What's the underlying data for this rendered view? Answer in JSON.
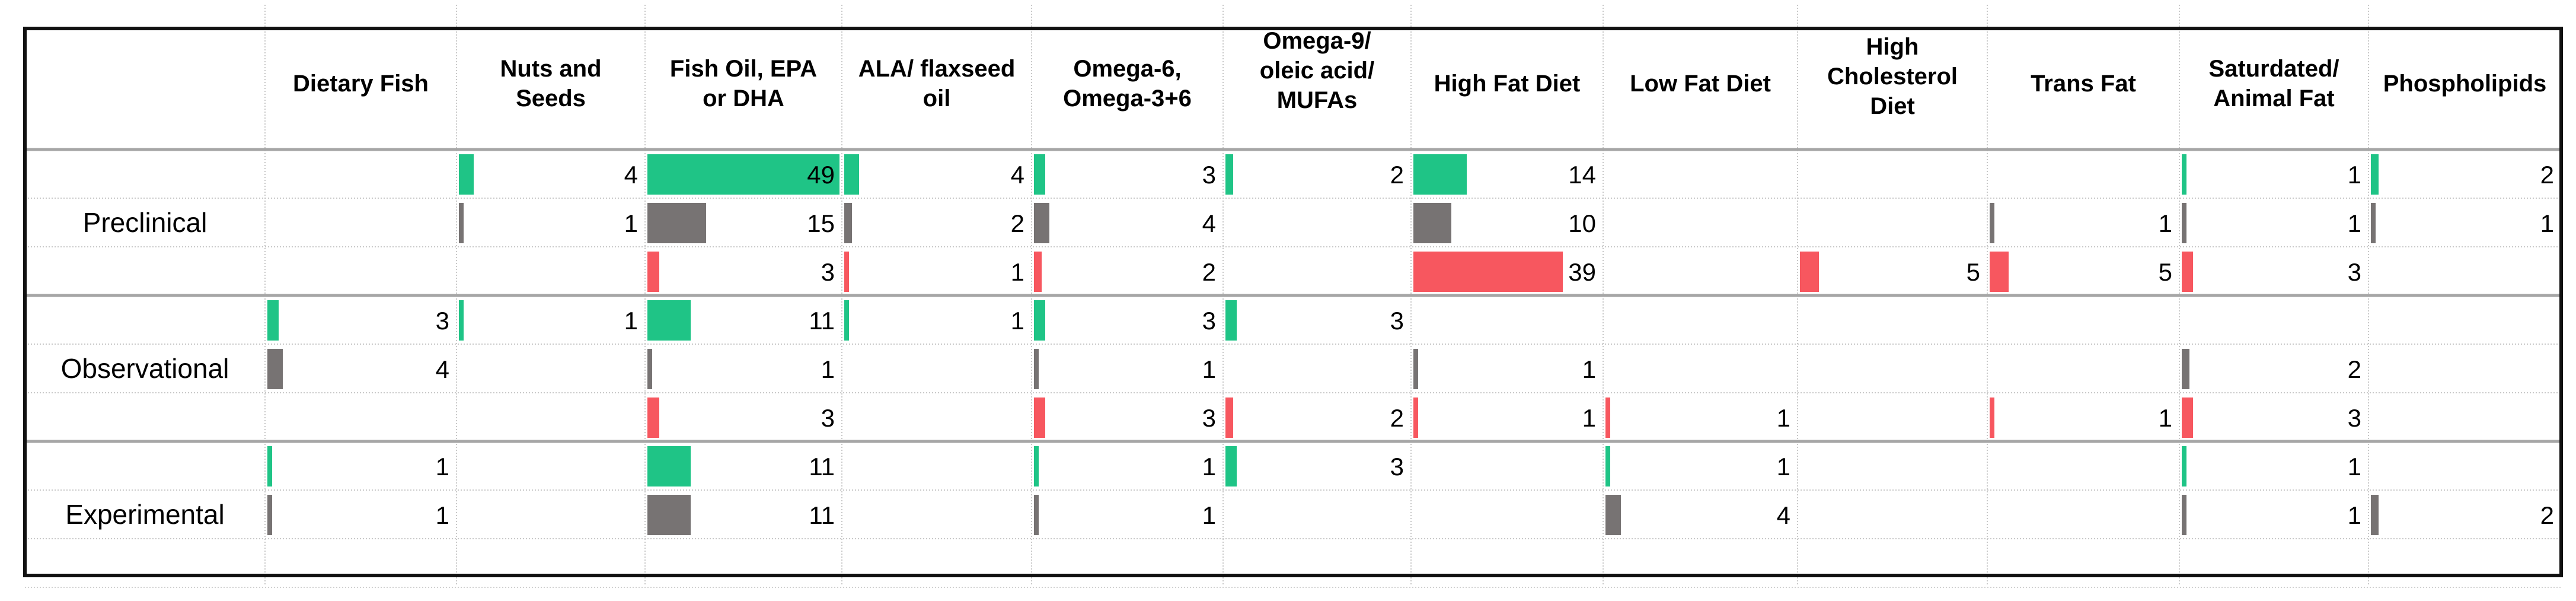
{
  "chart_data": {
    "type": "table",
    "title": "",
    "columns": [
      "Dietary Fish",
      "Nuts and Seeds",
      "Fish Oil, EPA or DHA",
      "ALA/ flaxseed oil",
      "Omega-6, Omega-3+6",
      "Omega-9/ oleic acid/ MUFAs",
      "High Fat Diet",
      "Low Fat Diet",
      "High Cholesterol Diet",
      "Trans Fat",
      "Saturdated/ Animal Fat",
      "Phospholipids"
    ],
    "series_colors": {
      "green": "#1fc486",
      "gray": "#777373",
      "red": "#f7575f"
    },
    "bar_scale_max": 49,
    "groups": [
      {
        "name": "Preclinical",
        "rows": [
          {
            "color": "green",
            "values": [
              null,
              4,
              49,
              4,
              3,
              2,
              14,
              null,
              null,
              null,
              1,
              2
            ]
          },
          {
            "color": "gray",
            "values": [
              null,
              1,
              15,
              2,
              4,
              null,
              10,
              null,
              null,
              1,
              1,
              1
            ]
          },
          {
            "color": "red",
            "values": [
              null,
              null,
              3,
              1,
              2,
              null,
              39,
              null,
              5,
              5,
              3,
              null
            ]
          }
        ]
      },
      {
        "name": "Observational",
        "rows": [
          {
            "color": "green",
            "values": [
              3,
              1,
              11,
              1,
              3,
              3,
              null,
              null,
              null,
              null,
              null,
              null
            ]
          },
          {
            "color": "gray",
            "values": [
              4,
              null,
              1,
              null,
              1,
              null,
              1,
              null,
              null,
              null,
              2,
              null
            ]
          },
          {
            "color": "red",
            "values": [
              null,
              null,
              3,
              null,
              3,
              2,
              1,
              1,
              null,
              1,
              3,
              null
            ]
          }
        ]
      },
      {
        "name": "Experimental",
        "rows": [
          {
            "color": "green",
            "values": [
              1,
              null,
              11,
              null,
              1,
              3,
              null,
              1,
              null,
              null,
              1,
              null
            ]
          },
          {
            "color": "gray",
            "values": [
              1,
              null,
              11,
              null,
              1,
              null,
              null,
              4,
              null,
              null,
              1,
              2
            ]
          },
          {
            "color": "red",
            "values": [
              null,
              null,
              null,
              null,
              null,
              null,
              null,
              null,
              null,
              null,
              null,
              null
            ]
          }
        ]
      }
    ]
  }
}
